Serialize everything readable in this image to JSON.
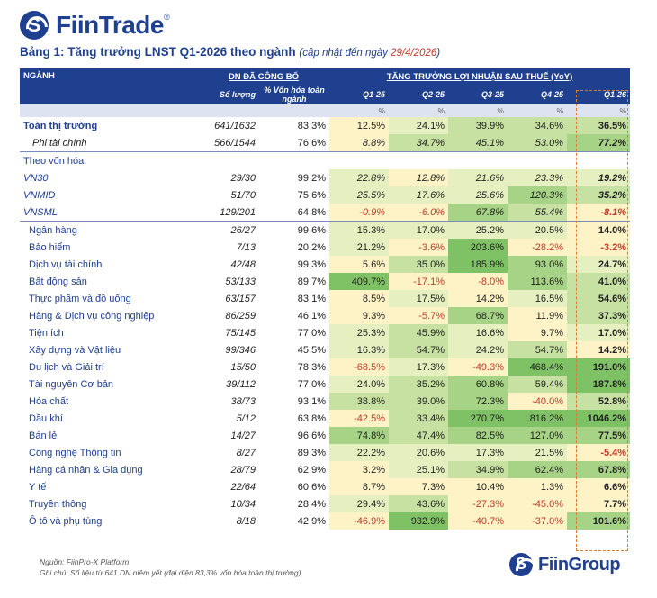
{
  "brand": {
    "top_logo": "FiinTrade",
    "bottom_logo": "FiinGroup",
    "registered": "®"
  },
  "title": {
    "main": "Bảng 1: Tăng trưởng LNST Q1-2026 theo ngành",
    "update_prefix": "(cập nhật đến ngày ",
    "update_date": "29/4/2026",
    "update_suffix": ")"
  },
  "header": {
    "sector": "NGÀNH",
    "group_dn": "DN ĐÃ CÔNG BỐ",
    "group_growth": "TĂNG TRƯỞNG LỢI NHUẬN SAU THUẾ (YoY)",
    "col_count": "Số lượng",
    "col_cap": "% Vốn hóa toàn ngành",
    "quarters": [
      "Q1-25",
      "Q2-25",
      "Q3-25",
      "Q4-25",
      "Q1-26"
    ],
    "unit": "%"
  },
  "colors": {
    "header_bg": "#1f3f8f",
    "negative": "#c0392b",
    "highlight_box": "#e07b2c"
  },
  "rows": [
    {
      "name": "Toàn thị trường",
      "count": "641/1632",
      "cap": "83.3%",
      "q": [
        "12.5%",
        "24.1%",
        "39.9%",
        "34.6%",
        "36.5%"
      ],
      "style": "total"
    },
    {
      "name": "Phi tài chính",
      "count": "566/1544",
      "cap": "76.6%",
      "q": [
        "8.8%",
        "34.7%",
        "45.1%",
        "53.0%",
        "77.2%"
      ],
      "style": "sub"
    },
    {
      "name": "Theo vốn hóa:",
      "count": "",
      "cap": "",
      "q": [
        "",
        "",
        "",
        "",
        ""
      ],
      "style": "group"
    },
    {
      "name": "VN30",
      "count": "29/30",
      "cap": "99.2%",
      "q": [
        "22.8%",
        "12.8%",
        "21.6%",
        "23.3%",
        "19.2%"
      ],
      "style": "cap"
    },
    {
      "name": "VNMID",
      "count": "51/70",
      "cap": "75.6%",
      "q": [
        "25.5%",
        "17.6%",
        "25.6%",
        "120.3%",
        "35.2%"
      ],
      "style": "cap"
    },
    {
      "name": "VNSML",
      "count": "129/201",
      "cap": "64.8%",
      "q": [
        "-0.9%",
        "-6.0%",
        "67.8%",
        "55.4%",
        "-8.1%"
      ],
      "style": "cap"
    },
    {
      "name": "Ngân hàng",
      "count": "26/27",
      "cap": "99.6%",
      "q": [
        "15.3%",
        "17.0%",
        "25.2%",
        "20.5%",
        "14.0%"
      ],
      "style": "sector"
    },
    {
      "name": "Bảo hiểm",
      "count": "7/13",
      "cap": "20.2%",
      "q": [
        "21.2%",
        "-3.6%",
        "203.6%",
        "-28.2%",
        "-3.2%"
      ],
      "style": "sector"
    },
    {
      "name": "Dịch vụ tài chính",
      "count": "42/48",
      "cap": "99.3%",
      "q": [
        "5.6%",
        "35.0%",
        "185.9%",
        "93.0%",
        "24.7%"
      ],
      "style": "sector"
    },
    {
      "name": "Bất động sản",
      "count": "53/133",
      "cap": "89.7%",
      "q": [
        "409.7%",
        "-17.1%",
        "-8.0%",
        "113.6%",
        "41.0%"
      ],
      "style": "sector"
    },
    {
      "name": "Thực phẩm và đồ uống",
      "count": "63/157",
      "cap": "83.1%",
      "q": [
        "8.5%",
        "17.5%",
        "14.2%",
        "16.5%",
        "54.6%"
      ],
      "style": "sector"
    },
    {
      "name": "Hàng & Dịch vụ công nghiệp",
      "count": "86/259",
      "cap": "46.1%",
      "q": [
        "9.3%",
        "-5.7%",
        "68.7%",
        "11.9%",
        "37.3%"
      ],
      "style": "sector"
    },
    {
      "name": "Tiện ích",
      "count": "75/145",
      "cap": "77.0%",
      "q": [
        "25.3%",
        "45.9%",
        "16.6%",
        "9.7%",
        "17.0%"
      ],
      "style": "sector"
    },
    {
      "name": "Xây dựng và Vật liệu",
      "count": "99/346",
      "cap": "45.5%",
      "q": [
        "16.3%",
        "54.7%",
        "24.2%",
        "54.7%",
        "14.2%"
      ],
      "style": "sector"
    },
    {
      "name": "Du lịch và Giải trí",
      "count": "15/50",
      "cap": "78.3%",
      "q": [
        "-68.5%",
        "17.3%",
        "-49.3%",
        "468.4%",
        "191.0%"
      ],
      "style": "sector"
    },
    {
      "name": "Tài nguyên Cơ bản",
      "count": "39/112",
      "cap": "77.0%",
      "q": [
        "24.0%",
        "35.2%",
        "60.8%",
        "59.4%",
        "187.8%"
      ],
      "style": "sector"
    },
    {
      "name": "Hóa chất",
      "count": "38/73",
      "cap": "93.1%",
      "q": [
        "38.8%",
        "39.0%",
        "72.3%",
        "-40.0%",
        "52.8%"
      ],
      "style": "sector"
    },
    {
      "name": "Dầu khí",
      "count": "5/12",
      "cap": "63.8%",
      "q": [
        "-42.5%",
        "33.4%",
        "270.7%",
        "816.2%",
        "1046.2%"
      ],
      "style": "sector"
    },
    {
      "name": "Bán lẻ",
      "count": "14/27",
      "cap": "96.6%",
      "q": [
        "74.8%",
        "47.4%",
        "82.5%",
        "127.0%",
        "77.5%"
      ],
      "style": "sector"
    },
    {
      "name": "Công nghệ Thông tin",
      "count": "8/27",
      "cap": "89.3%",
      "q": [
        "22.2%",
        "20.6%",
        "17.3%",
        "21.5%",
        "-5.4%"
      ],
      "style": "sector"
    },
    {
      "name": "Hàng cá nhân & Gia dụng",
      "count": "28/79",
      "cap": "62.9%",
      "q": [
        "3.2%",
        "25.1%",
        "34.9%",
        "62.4%",
        "67.8%"
      ],
      "style": "sector"
    },
    {
      "name": "Y tế",
      "count": "22/64",
      "cap": "60.6%",
      "q": [
        "8.7%",
        "7.3%",
        "10.4%",
        "1.3%",
        "6.6%"
      ],
      "style": "sector"
    },
    {
      "name": "Truyền thông",
      "count": "10/34",
      "cap": "28.4%",
      "q": [
        "29.4%",
        "43.6%",
        "-27.3%",
        "-45.0%",
        "7.7%"
      ],
      "style": "sector"
    },
    {
      "name": "Ô tô và phụ tùng",
      "count": "8/18",
      "cap": "42.9%",
      "q": [
        "-46.9%",
        "932.9%",
        "-40.7%",
        "-37.0%",
        "101.6%"
      ],
      "style": "sector"
    }
  ],
  "notes": {
    "source": "Nguồn: FiinPro-X Platform",
    "remark": "Ghi chú: Số liệu từ 641 DN niêm yết (đại diện 83,3% vốn hóa toàn thị trường)"
  }
}
